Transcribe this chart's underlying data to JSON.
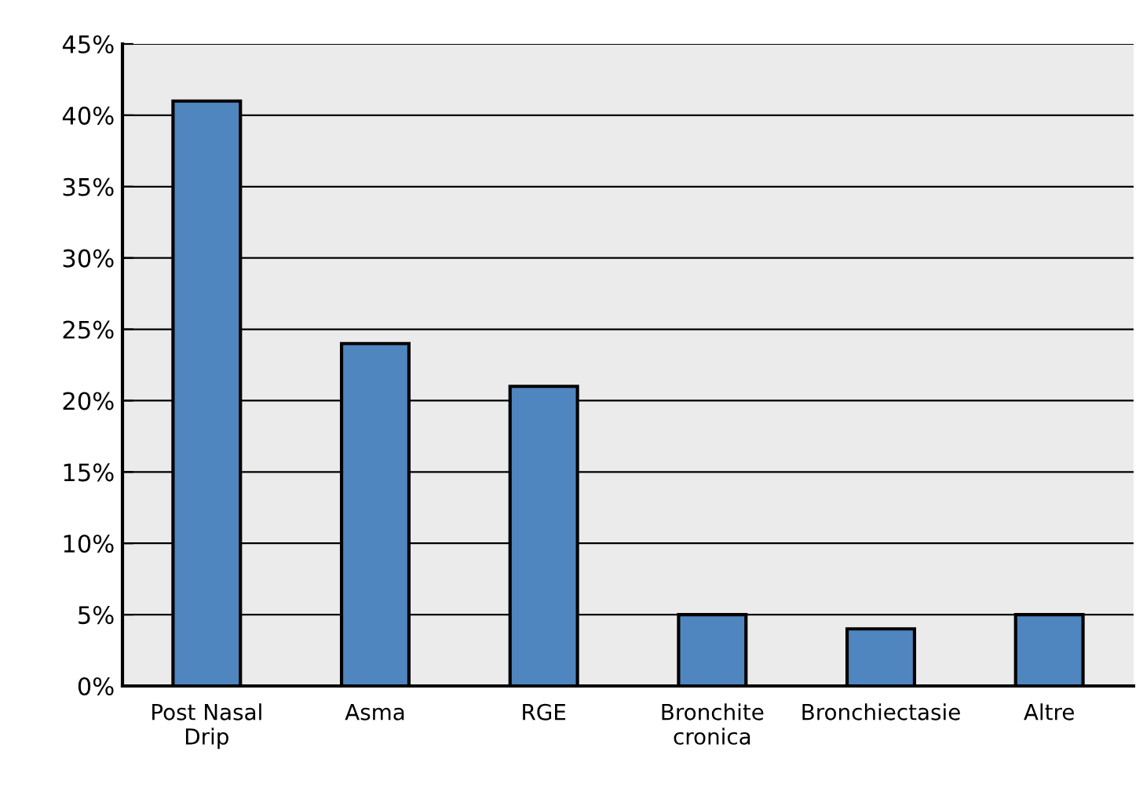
{
  "chart_data": {
    "type": "bar",
    "categories": [
      "Post Nasal\nDrip",
      "Asma",
      "RGE",
      "Bronchite\ncronica",
      "Bronchiectasie",
      "Altre"
    ],
    "values": [
      41,
      24,
      21,
      5,
      4,
      5
    ],
    "color": "#4f86c0",
    "ylim": [
      0,
      45
    ],
    "yticks": [
      {
        "value": 0,
        "label": "0%"
      },
      {
        "value": 5,
        "label": "5%"
      },
      {
        "value": 10,
        "label": "10%"
      },
      {
        "value": 15,
        "label": "15%"
      },
      {
        "value": 20,
        "label": "20%"
      },
      {
        "value": 25,
        "label": "25%"
      },
      {
        "value": 30,
        "label": "30%"
      },
      {
        "value": 35,
        "label": "35%"
      },
      {
        "value": 40,
        "label": "40%"
      },
      {
        "value": 45,
        "label": "45%"
      }
    ],
    "grid": "y"
  }
}
